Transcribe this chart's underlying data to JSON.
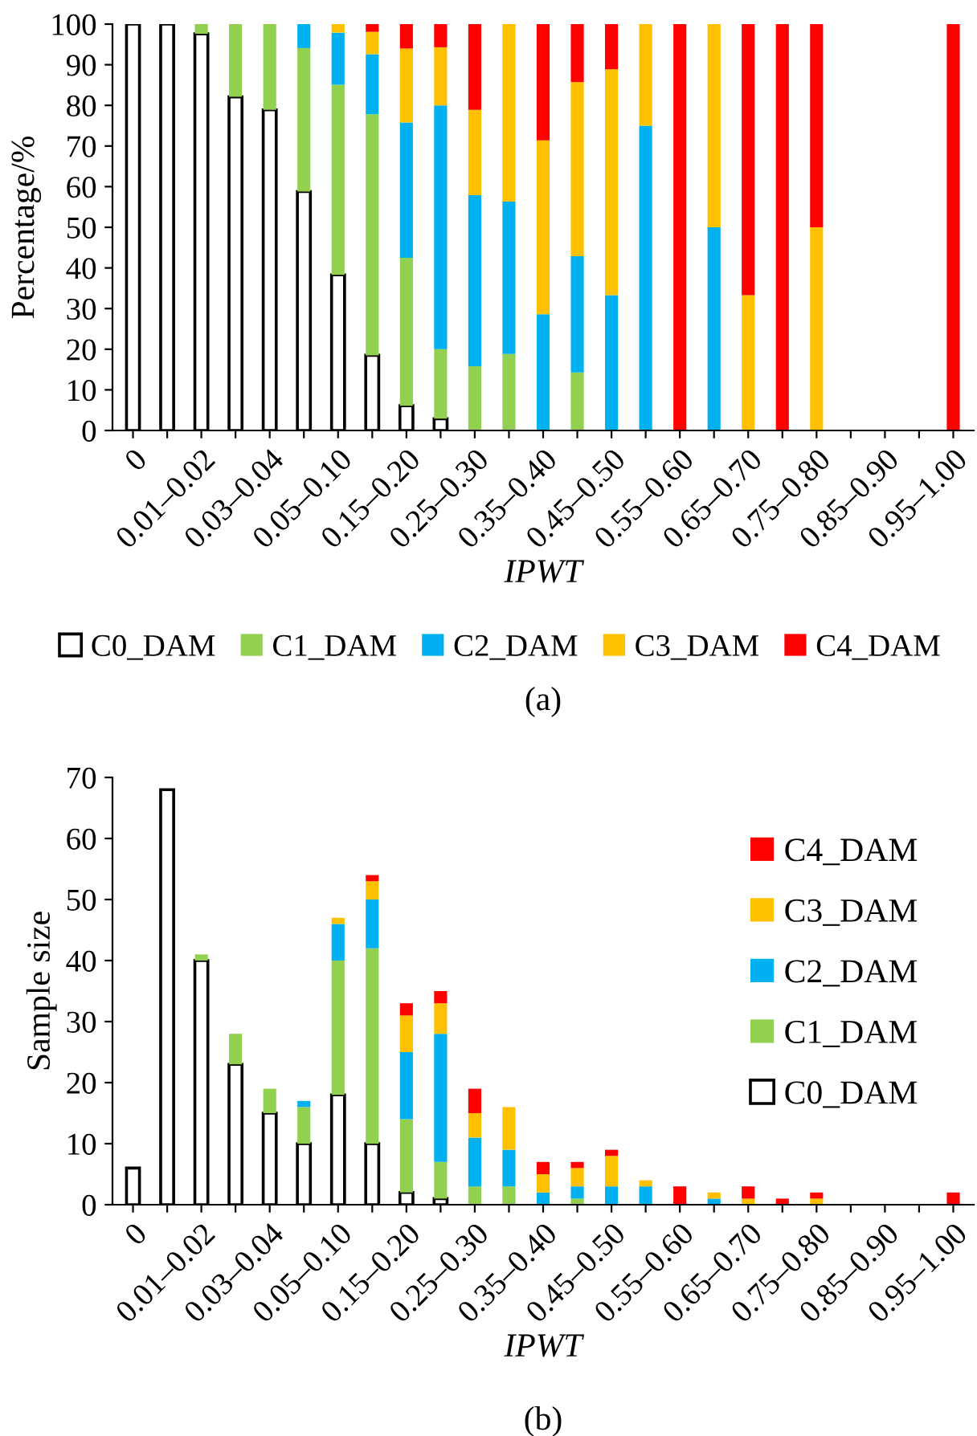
{
  "chart_data": [
    {
      "type": "bar",
      "stacked": true,
      "xlabel": "IPWT",
      "ylabel": "Percentage/%",
      "annotations": [
        "(a)"
      ],
      "categories": [
        "0",
        null,
        "0.01–0.02",
        null,
        "0.03–0.04",
        null,
        "0.05–0.10",
        null,
        "0.15–0.20",
        null,
        "0.25–0.30",
        null,
        "0.35–0.40",
        null,
        "0.45–0.50",
        null,
        "0.55–0.60",
        null,
        "0.65–0.70",
        null,
        "0.75–0.80",
        null,
        "0.85–0.90",
        null,
        "0.95–1.00"
      ],
      "ylim": [
        0,
        100
      ],
      "yticks": [
        0,
        10,
        20,
        30,
        40,
        50,
        60,
        70,
        80,
        90,
        100
      ],
      "grid": false,
      "legend": "bottom",
      "series": [
        {
          "name": "C0_DAM",
          "color": "#ffffff",
          "values": [
            100,
            100,
            97.6,
            82.1,
            78.9,
            58.8,
            38.3,
            18.5,
            6.1,
            2.9,
            null,
            null,
            null,
            null,
            null,
            null,
            null,
            null,
            null,
            null,
            null,
            null,
            null,
            null,
            null
          ]
        },
        {
          "name": "C1_DAM",
          "color": "#92d050",
          "values": [
            null,
            null,
            2.4,
            17.9,
            21.1,
            35.3,
            46.8,
            59.3,
            36.4,
            17.1,
            15.8,
            18.8,
            null,
            14.3,
            null,
            null,
            null,
            null,
            null,
            null,
            null,
            null,
            null,
            null,
            null
          ]
        },
        {
          "name": "C2_DAM",
          "color": "#00b0f0",
          "values": [
            null,
            null,
            null,
            null,
            null,
            5.9,
            12.8,
            14.8,
            33.3,
            60.0,
            42.1,
            37.5,
            28.6,
            28.6,
            33.3,
            75,
            null,
            50,
            null,
            null,
            null,
            null,
            null,
            null,
            null
          ]
        },
        {
          "name": "C3_DAM",
          "color": "#ffc000",
          "values": [
            null,
            null,
            null,
            null,
            null,
            null,
            2.1,
            5.5,
            18.2,
            14.3,
            21.0,
            43.7,
            42.8,
            42.8,
            55.6,
            25,
            null,
            50,
            33.3,
            null,
            50,
            null,
            null,
            null,
            null
          ]
        },
        {
          "name": "C4_DAM",
          "color": "#ff0000",
          "values": [
            null,
            null,
            null,
            null,
            null,
            null,
            null,
            1.9,
            6.0,
            5.7,
            21.1,
            null,
            28.6,
            14.3,
            11.1,
            null,
            100,
            null,
            66.7,
            100,
            50,
            null,
            null,
            null,
            100
          ]
        }
      ]
    },
    {
      "type": "bar",
      "stacked": true,
      "xlabel": "IPWT",
      "ylabel": "Sample size",
      "annotations": [
        "(b)"
      ],
      "categories": [
        "0",
        null,
        "0.01–0.02",
        null,
        "0.03–0.04",
        null,
        "0.05–0.10",
        null,
        "0.15–0.20",
        null,
        "0.25–0.30",
        null,
        "0.35–0.40",
        null,
        "0.45–0.50",
        null,
        "0.55–0.60",
        null,
        "0.65–0.70",
        null,
        "0.75–0.80",
        null,
        "0.85–0.90",
        null,
        "0.95–1.00"
      ],
      "ylim": [
        0,
        70
      ],
      "yticks": [
        0,
        10,
        20,
        30,
        40,
        50,
        60,
        70
      ],
      "grid": false,
      "legend": "top right",
      "series": [
        {
          "name": "C0_DAM",
          "color": "#ffffff",
          "values": [
            6,
            68,
            40,
            23,
            15,
            10,
            18,
            10,
            2,
            1,
            null,
            null,
            null,
            null,
            null,
            null,
            null,
            null,
            null,
            null,
            null,
            null,
            null,
            null,
            null
          ]
        },
        {
          "name": "C1_DAM",
          "color": "#92d050",
          "values": [
            null,
            null,
            1,
            5,
            4,
            6,
            22,
            32,
            12,
            6,
            3,
            3,
            null,
            1,
            null,
            null,
            null,
            null,
            null,
            null,
            null,
            null,
            null,
            null,
            null
          ]
        },
        {
          "name": "C2_DAM",
          "color": "#00b0f0",
          "values": [
            null,
            null,
            null,
            null,
            null,
            1,
            6,
            8,
            11,
            21,
            8,
            6,
            2,
            2,
            3,
            3,
            null,
            1,
            null,
            null,
            null,
            null,
            null,
            null,
            null
          ]
        },
        {
          "name": "C3_DAM",
          "color": "#ffc000",
          "values": [
            null,
            null,
            null,
            null,
            null,
            null,
            1,
            3,
            6,
            5,
            4,
            7,
            3,
            3,
            5,
            1,
            null,
            1,
            1,
            null,
            1,
            null,
            null,
            null,
            null
          ]
        },
        {
          "name": "C4_DAM",
          "color": "#ff0000",
          "values": [
            null,
            null,
            null,
            null,
            null,
            null,
            null,
            1,
            2,
            2,
            4,
            null,
            2,
            1,
            1,
            null,
            3,
            null,
            2,
            1,
            1,
            null,
            null,
            null,
            2
          ]
        }
      ]
    }
  ]
}
